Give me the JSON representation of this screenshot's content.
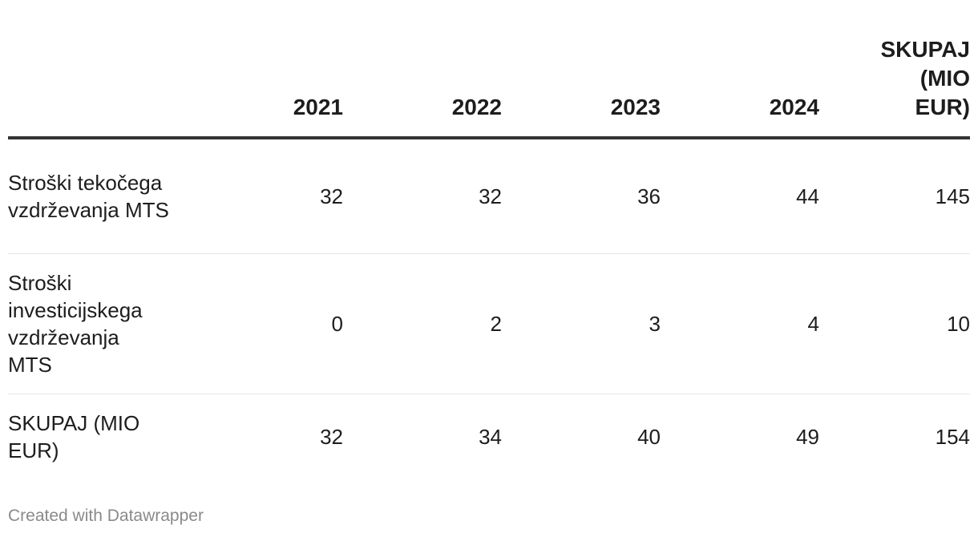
{
  "chart_data": {
    "type": "table",
    "columns": [
      "",
      "2021",
      "2022",
      "2023",
      "2024",
      "SKUPAJ (MIO EUR)"
    ],
    "rows": [
      {
        "label": "Stroški tekočega vzdrževanja MTS",
        "values": [
          "32",
          "32",
          "36",
          "44",
          "145"
        ]
      },
      {
        "label": "Stroški investicijskega vzdrževanja MTS",
        "values": [
          "0",
          "2",
          "3",
          "4",
          "10"
        ]
      },
      {
        "label": "SKUPAJ (MIO EUR)",
        "values": [
          "32",
          "34",
          "40",
          "49",
          "154"
        ]
      }
    ]
  },
  "footer": {
    "credit": "Created with Datawrapper"
  }
}
